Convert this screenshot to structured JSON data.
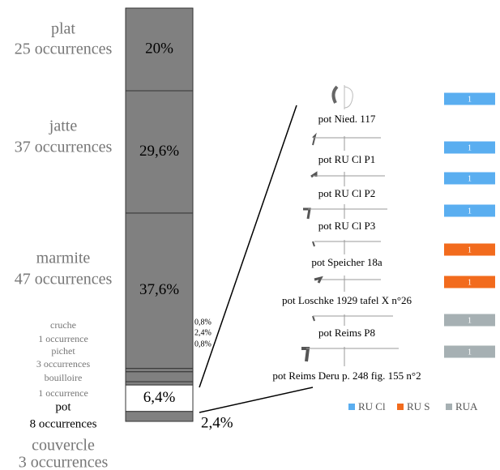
{
  "chart_data": [
    {
      "type": "stacked-bar",
      "categories": [
        "plat",
        "jatte",
        "marmite",
        "cruche",
        "pichet",
        "bouilloire",
        "pot",
        "couvercle"
      ],
      "occurrences": [
        "25 occurrences",
        "37 occurrences",
        "47 occurrences",
        "1 occurrence",
        "3 occurrences",
        "1 occurrence",
        "8 occurrences",
        "3 occurrences"
      ],
      "values": [
        20,
        29.6,
        37.6,
        0.8,
        2.4,
        0.8,
        6.4,
        2.4
      ],
      "value_labels": [
        "20%",
        "29,6%",
        "37,6%",
        "0,8%",
        "2,4%",
        "0,8%",
        "6,4%",
        "2,4%"
      ],
      "ylim": [
        0,
        100
      ],
      "color": "#808080",
      "highlight": "pot",
      "highlight_color": "#ffffff"
    },
    {
      "type": "hbar",
      "categories": [
        "pot Nied. 117",
        "pot RU Cl P1",
        "pot RU Cl P2",
        "pot RU Cl P3",
        "pot Speicher 18a",
        "pot Loschke 1929 tafel X  n°26",
        "pot Reims P8",
        "pot Reims Deru p. 248 fig. 155 n°2"
      ],
      "xlim": [
        0,
        1
      ],
      "series": [
        {
          "name": "RU Cl",
          "color": "#5aaef0",
          "values": [
            1,
            1,
            1,
            1,
            null,
            null,
            null,
            null
          ]
        },
        {
          "name": "RU S",
          "color": "#f26b1d",
          "values": [
            null,
            null,
            null,
            null,
            1,
            1,
            null,
            null
          ]
        },
        {
          "name": "RUA",
          "color": "#a6b0b3",
          "values": [
            null,
            null,
            null,
            null,
            null,
            null,
            1,
            1
          ]
        }
      ]
    }
  ]
}
